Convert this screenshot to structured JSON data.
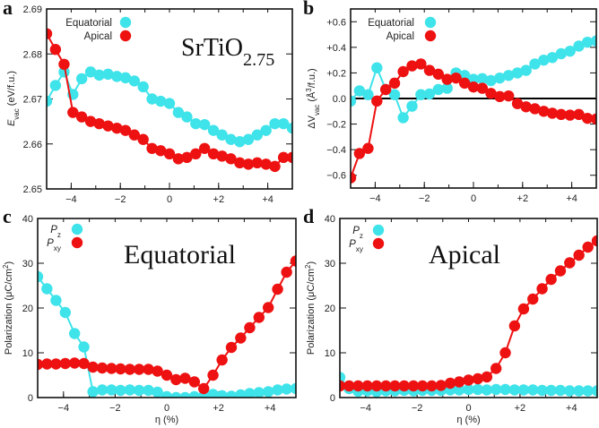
{
  "colors": {
    "equatorial": "#3fe3ea",
    "apical": "#ee1111",
    "axis": "#111111"
  },
  "chart_data": [
    {
      "panel": "a",
      "type": "line",
      "annotation": [
        [
          "SrTiO",
          ""
        ],
        [
          "2.75",
          "sub"
        ]
      ],
      "ylabel": [
        [
          "E",
          "i"
        ],
        [
          "vac",
          "sub"
        ],
        [
          " (eV/f.u.)",
          ""
        ]
      ],
      "xlabel": "",
      "xlim": [
        -5,
        5
      ],
      "ylim": [
        2.65,
        2.69
      ],
      "xticks": [
        "−4",
        "−2",
        "0",
        "+2",
        "+4"
      ],
      "xtick_values": [
        -4,
        -2,
        0,
        2,
        4
      ],
      "yticks": [
        "2.65",
        "2.66",
        "2.67",
        "2.68",
        "2.69"
      ],
      "ytick_values": [
        2.65,
        2.66,
        2.67,
        2.68,
        2.69
      ],
      "legend": "top-left",
      "x": [
        -5,
        -4.64,
        -4.29,
        -3.93,
        -3.57,
        -3.21,
        -2.86,
        -2.5,
        -2.14,
        -1.79,
        -1.43,
        -1.07,
        -0.71,
        -0.36,
        0,
        0.36,
        0.71,
        1.07,
        1.43,
        1.79,
        2.14,
        2.5,
        2.86,
        3.21,
        3.57,
        3.93,
        4.29,
        4.64,
        5
      ],
      "series": [
        {
          "name": [
            [
              "Equatorial",
              ""
            ]
          ],
          "color": "#3fe3ea",
          "values": [
            2.6695,
            2.673,
            2.676,
            2.671,
            2.6745,
            2.676,
            2.6753,
            2.6755,
            2.675,
            2.6747,
            2.674,
            2.6727,
            2.67,
            2.6695,
            2.669,
            2.667,
            2.666,
            2.6645,
            2.6643,
            2.663,
            2.662,
            2.661,
            2.6605,
            2.661,
            2.662,
            2.663,
            2.6645,
            2.6645,
            2.6635
          ]
        },
        {
          "name": [
            [
              "Apical",
              ""
            ]
          ],
          "color": "#ee1111",
          "values": [
            2.6845,
            2.681,
            2.6777,
            2.667,
            2.666,
            2.665,
            2.6645,
            2.664,
            2.6635,
            2.663,
            2.662,
            2.661,
            2.659,
            2.6585,
            2.6578,
            2.6567,
            2.657,
            2.6578,
            2.659,
            2.6578,
            2.6573,
            2.6567,
            2.6558,
            2.6555,
            2.6558,
            2.6555,
            2.655,
            2.657,
            2.657
          ]
        }
      ]
    },
    {
      "panel": "b",
      "type": "line",
      "annotation": [],
      "ylabel": [
        [
          "ΔV",
          ""
        ],
        [
          "vac",
          "sub"
        ],
        [
          " (Å",
          ""
        ],
        [
          "3",
          "sup"
        ],
        [
          "/f.u.)",
          ""
        ]
      ],
      "xlabel": "",
      "xlim": [
        -5,
        5
      ],
      "ylim": [
        -0.7,
        0.7
      ],
      "zero_line": true,
      "xticks": [
        "−4",
        "−2",
        "0",
        "+2",
        "+4"
      ],
      "xtick_values": [
        -4,
        -2,
        0,
        2,
        4
      ],
      "yticks": [
        "−0.6",
        "−0.4",
        "−0.2",
        "0.0",
        "+0.2",
        "+0.4",
        "+0.6"
      ],
      "ytick_values": [
        -0.6,
        -0.4,
        -0.2,
        0,
        0.2,
        0.4,
        0.6
      ],
      "legend": "top-left",
      "x": [
        -5,
        -4.64,
        -4.29,
        -3.93,
        -3.57,
        -3.21,
        -2.86,
        -2.5,
        -2.14,
        -1.79,
        -1.43,
        -1.07,
        -0.71,
        -0.36,
        0,
        0.36,
        0.71,
        1.07,
        1.43,
        1.79,
        2.14,
        2.5,
        2.86,
        3.21,
        3.57,
        3.93,
        4.29,
        4.64,
        5
      ],
      "series": [
        {
          "name": [
            [
              "Equatorial",
              ""
            ]
          ],
          "color": "#3fe3ea",
          "values": [
            -0.02,
            0.06,
            0.03,
            0.24,
            0.07,
            0.03,
            -0.15,
            -0.06,
            0.03,
            0.035,
            0.07,
            0.08,
            0.2,
            0.18,
            0.15,
            0.155,
            0.14,
            0.16,
            0.18,
            0.2,
            0.22,
            0.27,
            0.3,
            0.32,
            0.35,
            0.37,
            0.41,
            0.44,
            0.45
          ]
        },
        {
          "name": [
            [
              "Apical",
              ""
            ]
          ],
          "color": "#ee1111",
          "values": [
            -0.62,
            -0.43,
            -0.39,
            -0.02,
            0.07,
            0.12,
            0.21,
            0.255,
            0.27,
            0.22,
            0.19,
            0.15,
            0.16,
            0.12,
            0.09,
            0.08,
            0.04,
            0.015,
            0.02,
            -0.04,
            -0.065,
            -0.08,
            -0.1,
            -0.115,
            -0.125,
            -0.13,
            -0.125,
            -0.155,
            -0.16
          ]
        }
      ]
    },
    {
      "panel": "c",
      "type": "line",
      "annotation": [
        [
          "Equatorial",
          ""
        ]
      ],
      "ylabel": [
        [
          "Polarization (μC/cm",
          ""
        ],
        [
          "2",
          "sup"
        ],
        [
          ")",
          ""
        ]
      ],
      "xlabel": "η (%)",
      "xlim": [
        -5,
        5
      ],
      "ylim": [
        0,
        40
      ],
      "xticks": [
        "−4",
        "−2",
        "0",
        "+2",
        "+4"
      ],
      "xtick_values": [
        -4,
        -2,
        0,
        2,
        4
      ],
      "yticks": [
        "0",
        "10",
        "20",
        "30",
        "40"
      ],
      "ytick_values": [
        0,
        10,
        20,
        30,
        40
      ],
      "legend": "top-left",
      "x": [
        -5,
        -4.64,
        -4.29,
        -3.93,
        -3.57,
        -3.21,
        -2.86,
        -2.5,
        -2.14,
        -1.79,
        -1.43,
        -1.07,
        -0.71,
        -0.36,
        0,
        0.36,
        0.71,
        1.07,
        1.43,
        1.79,
        2.14,
        2.5,
        2.86,
        3.21,
        3.57,
        3.93,
        4.29,
        4.64,
        5
      ],
      "series": [
        {
          "name": [
            [
              "P",
              "i"
            ],
            [
              "z",
              "sub"
            ]
          ],
          "color": "#3fe3ea",
          "values": [
            27,
            24.3,
            21.7,
            19,
            14.3,
            11.3,
            1.3,
            1.7,
            1.7,
            1.6,
            1.7,
            1.6,
            1.6,
            1.2,
            0.2,
            0,
            0,
            0.2,
            0.3,
            0.7,
            0.4,
            0.3,
            0.6,
            0.9,
            1.1,
            1.3,
            1.7,
            1.9,
            2.0
          ]
        },
        {
          "name": [
            [
              "P",
              "i"
            ],
            [
              "xy",
              "sub"
            ]
          ],
          "color": "#ee1111",
          "values": [
            7.4,
            7.5,
            7.5,
            7.6,
            7.7,
            7.6,
            6.8,
            6.6,
            6.5,
            6.4,
            6.3,
            6.3,
            6.3,
            5.9,
            5.0,
            4.0,
            4.3,
            3.5,
            2.0,
            5.0,
            8.4,
            11.2,
            13.3,
            15.6,
            17.9,
            20.1,
            24.2,
            28.0,
            30.5
          ]
        }
      ]
    },
    {
      "panel": "d",
      "type": "line",
      "annotation": [
        [
          "Apical",
          ""
        ]
      ],
      "ylabel": [
        [
          "Polarization (μC/cm",
          ""
        ],
        [
          "2",
          "sup"
        ],
        [
          ")",
          ""
        ]
      ],
      "xlabel": "η (%)",
      "xlim": [
        -5,
        5
      ],
      "ylim": [
        0,
        40
      ],
      "xticks": [
        "−4",
        "−2",
        "0",
        "+2",
        "+4"
      ],
      "xtick_values": [
        -4,
        -2,
        0,
        2,
        4
      ],
      "yticks": [
        "0",
        "10",
        "20",
        "30",
        "40"
      ],
      "ytick_values": [
        0,
        10,
        20,
        30,
        40
      ],
      "legend": "top-left",
      "x": [
        -5,
        -4.64,
        -4.29,
        -3.93,
        -3.57,
        -3.21,
        -2.86,
        -2.5,
        -2.14,
        -1.79,
        -1.43,
        -1.07,
        -0.71,
        -0.36,
        0,
        0.36,
        0.71,
        1.07,
        1.43,
        1.79,
        2.14,
        2.5,
        2.86,
        3.21,
        3.57,
        3.93,
        4.29,
        4.64,
        5
      ],
      "series": [
        {
          "name": [
            [
              "P",
              "i"
            ],
            [
              "z",
              "sub"
            ]
          ],
          "color": "#3fe3ea",
          "values": [
            4.5,
            2.0,
            1.4,
            1.5,
            1.3,
            1.5,
            1.5,
            1.6,
            1.5,
            1.6,
            1.6,
            1.6,
            1.7,
            1.7,
            1.8,
            1.8,
            1.7,
            1.8,
            1.8,
            1.7,
            1.7,
            1.7,
            1.6,
            1.6,
            1.6,
            1.5,
            1.5,
            1.5,
            1.5
          ]
        },
        {
          "name": [
            [
              "P",
              "i"
            ],
            [
              "xy",
              "sub"
            ]
          ],
          "color": "#ee1111",
          "values": [
            2.6,
            2.6,
            2.6,
            2.6,
            2.6,
            2.6,
            2.6,
            2.6,
            2.6,
            2.6,
            2.6,
            2.7,
            3.2,
            3.5,
            3.9,
            4.2,
            4.6,
            6.5,
            10,
            16,
            19.8,
            22,
            24.3,
            26.4,
            28.3,
            30.1,
            31.8,
            33.6,
            35
          ]
        }
      ]
    }
  ]
}
